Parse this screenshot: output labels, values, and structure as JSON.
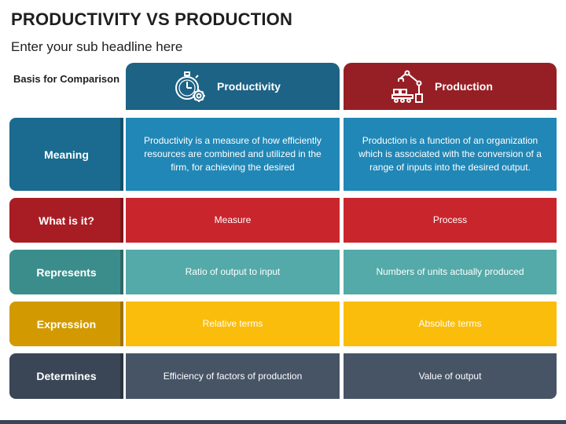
{
  "title": "PRODUCTIVITY VS PRODUCTION",
  "subtitle": "Enter your sub headline here",
  "basis_label": "Basis for Comparison",
  "columns": {
    "productivity": {
      "label": "Productivity",
      "icon": "stopwatch-gear-icon",
      "color": "#1d6385"
    },
    "production": {
      "label": "Production",
      "icon": "robot-arm-factory-icon",
      "color": "#961f25"
    }
  },
  "rows": [
    {
      "label": "Meaning",
      "productivity": "Productivity is a measure of how efficiently resources are combined and utilized in the firm, for achieving the desired",
      "production": "Production is a function of an organization which is associated with the conversion of a range of inputs into the desired output.",
      "color": "#2187b6"
    },
    {
      "label": "What is it?",
      "productivity": "Measure",
      "production": "Process",
      "color": "#c9252c"
    },
    {
      "label": "Represents",
      "productivity": "Ratio of output to input",
      "production": "Numbers of units actually produced",
      "color": "#53aaa8"
    },
    {
      "label": "Expression",
      "productivity": "Relative terms",
      "production": "Absolute terms",
      "color": "#fbbd0b"
    },
    {
      "label": "Determines",
      "productivity": "Efficiency of factors of production",
      "production": "Value of output",
      "color": "#465466"
    }
  ]
}
